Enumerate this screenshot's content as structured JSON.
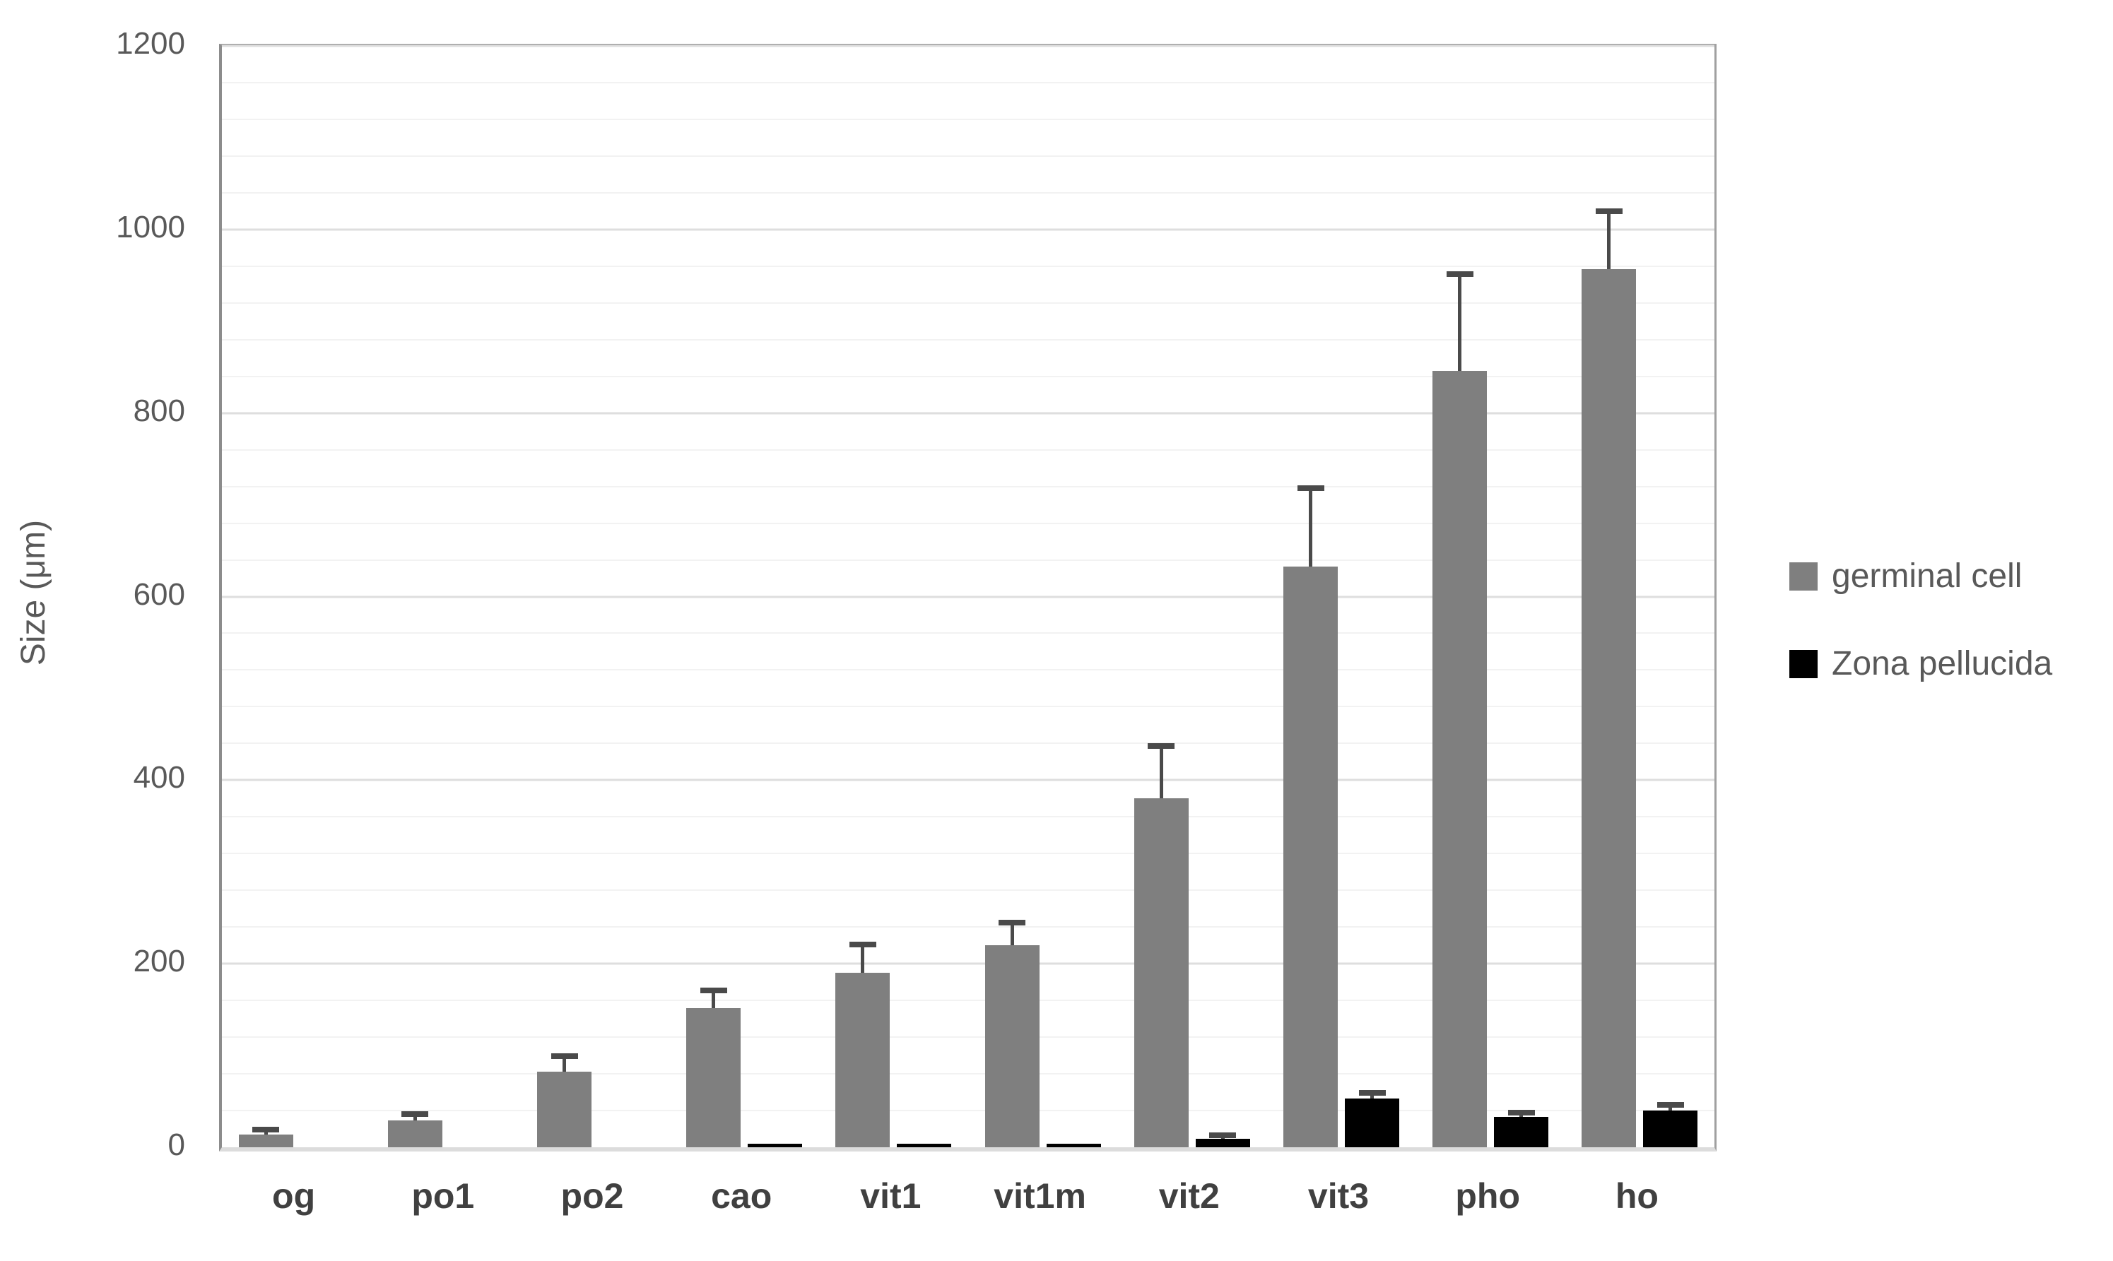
{
  "chart_data": {
    "type": "bar",
    "title": "",
    "xlabel": "",
    "ylabel": "Size (μm)",
    "ylim": [
      0,
      1200
    ],
    "ytick_step": 200,
    "minor_grid_step": 40,
    "grid": true,
    "legend_position": "right",
    "error_bars": "plus_direction_only",
    "categories": [
      "og",
      "po1",
      "po2",
      "cao",
      "vit1",
      "vit1m",
      "vit2",
      "vit3",
      "pho",
      "ho"
    ],
    "series": [
      {
        "name": "germinal cell",
        "color": "#7f7f7f",
        "values": [
          14,
          29,
          82,
          152,
          190,
          220,
          380,
          633,
          846,
          957
        ],
        "errors_plus": [
          5,
          7,
          17,
          19,
          31,
          25,
          57,
          85,
          105,
          63
        ]
      },
      {
        "name": "Zona pellucida",
        "color": "#000000",
        "values": [
          0,
          0,
          0,
          4,
          4,
          4,
          9,
          53,
          33,
          40
        ],
        "errors_plus": [
          0,
          0,
          0,
          0,
          0,
          0,
          4,
          6,
          5,
          6
        ]
      }
    ]
  }
}
